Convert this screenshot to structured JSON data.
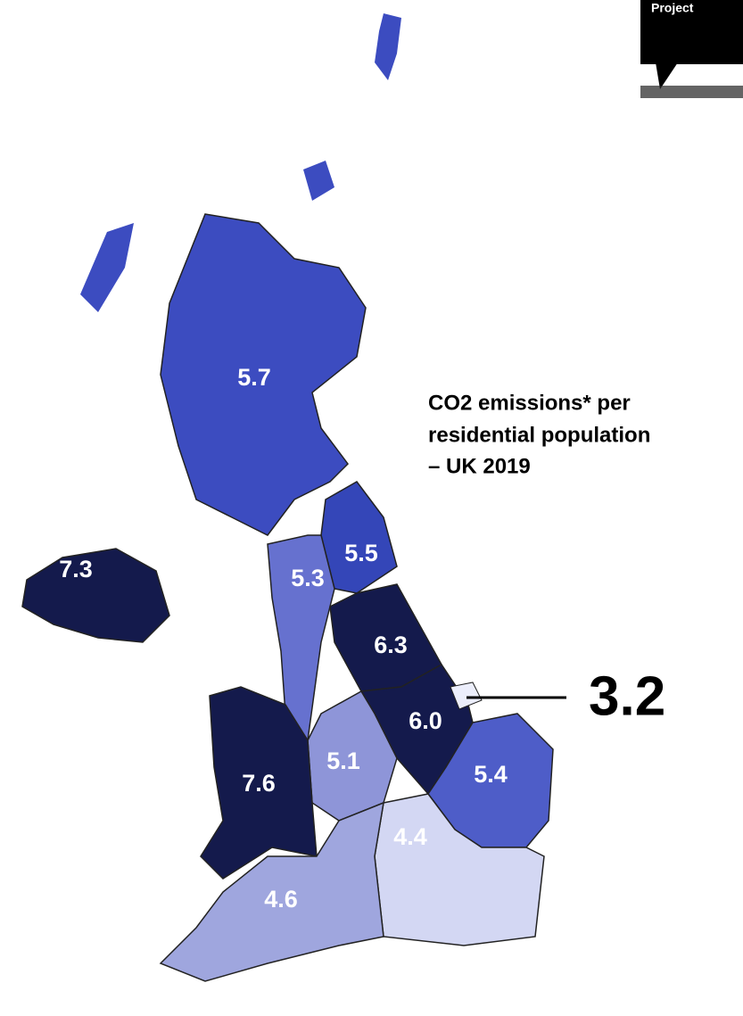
{
  "title": [
    "CO2 emissions* per",
    "residential population",
    "– UK 2019"
  ],
  "logo": "Project",
  "regions": [
    {
      "value": 5.7,
      "label": "5.7",
      "color": "#3c4cc0"
    },
    {
      "value": 7.3,
      "label": "7.3",
      "color": "#141a4c"
    },
    {
      "value": 5.5,
      "label": "5.5",
      "color": "#3446b8"
    },
    {
      "value": 5.3,
      "label": "5.3",
      "color": "#6671cf"
    },
    {
      "value": 6.3,
      "label": "6.3",
      "color": "#141a4c"
    },
    {
      "value": 6.0,
      "label": "6.0",
      "color": "#141a4c"
    },
    {
      "value": 5.1,
      "label": "5.1",
      "color": "#8e95d8"
    },
    {
      "value": 7.6,
      "label": "7.6",
      "color": "#141a4c"
    },
    {
      "value": 5.4,
      "label": "5.4",
      "color": "#4e5dc8"
    },
    {
      "value": 4.4,
      "label": "4.4",
      "color": "#d3d7f3"
    },
    {
      "value": 4.6,
      "label": "4.6",
      "color": "#9fa6de"
    }
  ],
  "callout": {
    "value": 3.2,
    "label": "3.2",
    "color": "#eceefb"
  }
}
